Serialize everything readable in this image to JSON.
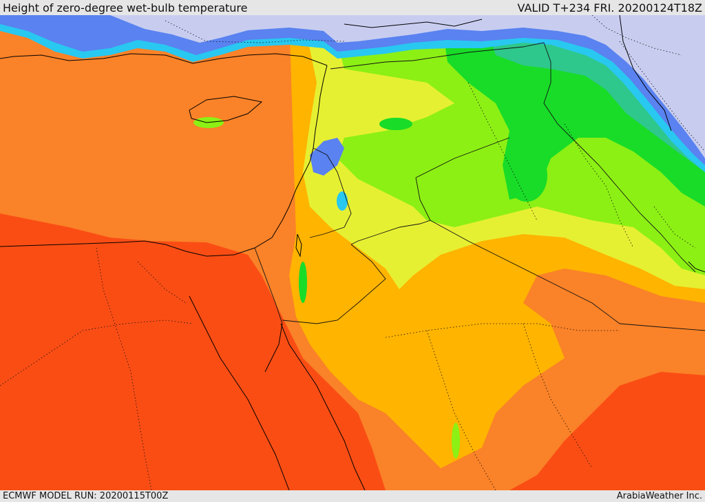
{
  "header": {
    "title": "Height of zero-degree wet-bulb temperature",
    "valid": "VALID T+234 FRI. 20200124T18Z"
  },
  "footer": {
    "model_run": "ECMWF MODEL RUN: 20200115T00Z",
    "credit": "ArabiaWeather Inc."
  },
  "colors": {
    "lowest": "#c8cdf0",
    "blue": "#5a82f0",
    "cyan": "#28c8f0",
    "teal": "#2ec88c",
    "green": "#18dc28",
    "lime": "#8cf014",
    "yellow": "#e6f032",
    "amber": "#ffb400",
    "orange": "#fa8228",
    "red_orange": "#fa4d14"
  }
}
